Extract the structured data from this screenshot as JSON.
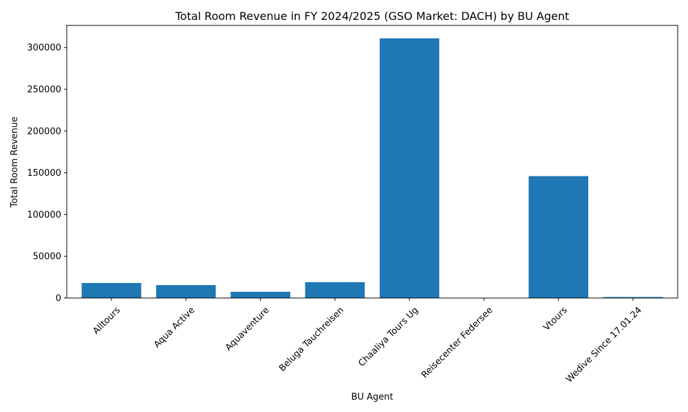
{
  "chart_data": {
    "type": "bar",
    "title": "Total Room Revenue in FY 2024/2025 (GSO Market: DACH) by BU Agent",
    "xlabel": "BU Agent",
    "ylabel": "Total Room Revenue",
    "categories": [
      "Alltours",
      "Aqua Active",
      "Aquaventure",
      "Beluga Tauchreisen",
      "Chaaliya Tours Ug",
      "Reisecenter Federsee",
      "Vtours",
      "Wedive Since 17.01.24"
    ],
    "values": [
      18000,
      15500,
      7500,
      19000,
      311000,
      200,
      146000,
      1200
    ],
    "ylim": [
      0,
      326500
    ],
    "yticks": [
      0,
      50000,
      100000,
      150000,
      200000,
      250000,
      300000
    ],
    "ytick_labels": [
      "0",
      "50000",
      "100000",
      "150000",
      "200000",
      "250000",
      "300000"
    ],
    "bar_color": "#1f77b4",
    "grid": false,
    "legend": "none"
  }
}
